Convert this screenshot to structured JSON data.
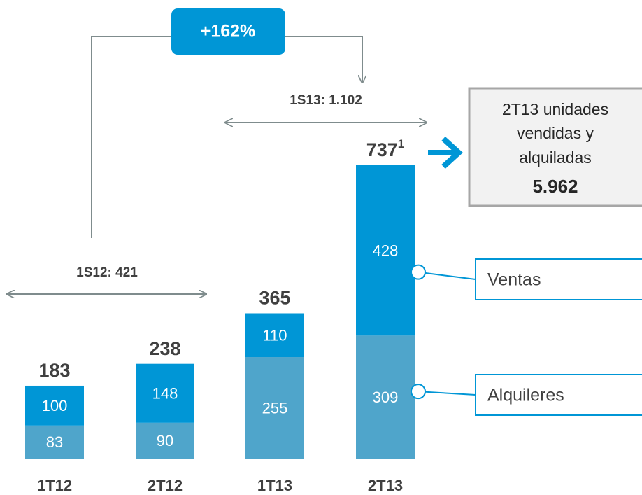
{
  "chart_data": {
    "type": "stacked_bar",
    "categories": [
      "1T12",
      "2T12",
      "1T13",
      "2T13"
    ],
    "series": [
      {
        "name": "Alquileres",
        "color": "#4fa5cb",
        "values": [
          83,
          90,
          255,
          309
        ]
      },
      {
        "name": "Ventas",
        "color": "#0096d6",
        "values": [
          100,
          148,
          110,
          428
        ]
      }
    ],
    "totals": [
      183,
      238,
      365,
      737
    ],
    "footnote": "1",
    "annotations": {
      "growth": "+162%",
      "period_2013": "1S13: 1.102",
      "period_2012": "1S12: 421",
      "box_lines": [
        "2T13 unidades",
        "vendidas y",
        "alquiladas"
      ],
      "box_value": "5.962"
    }
  }
}
